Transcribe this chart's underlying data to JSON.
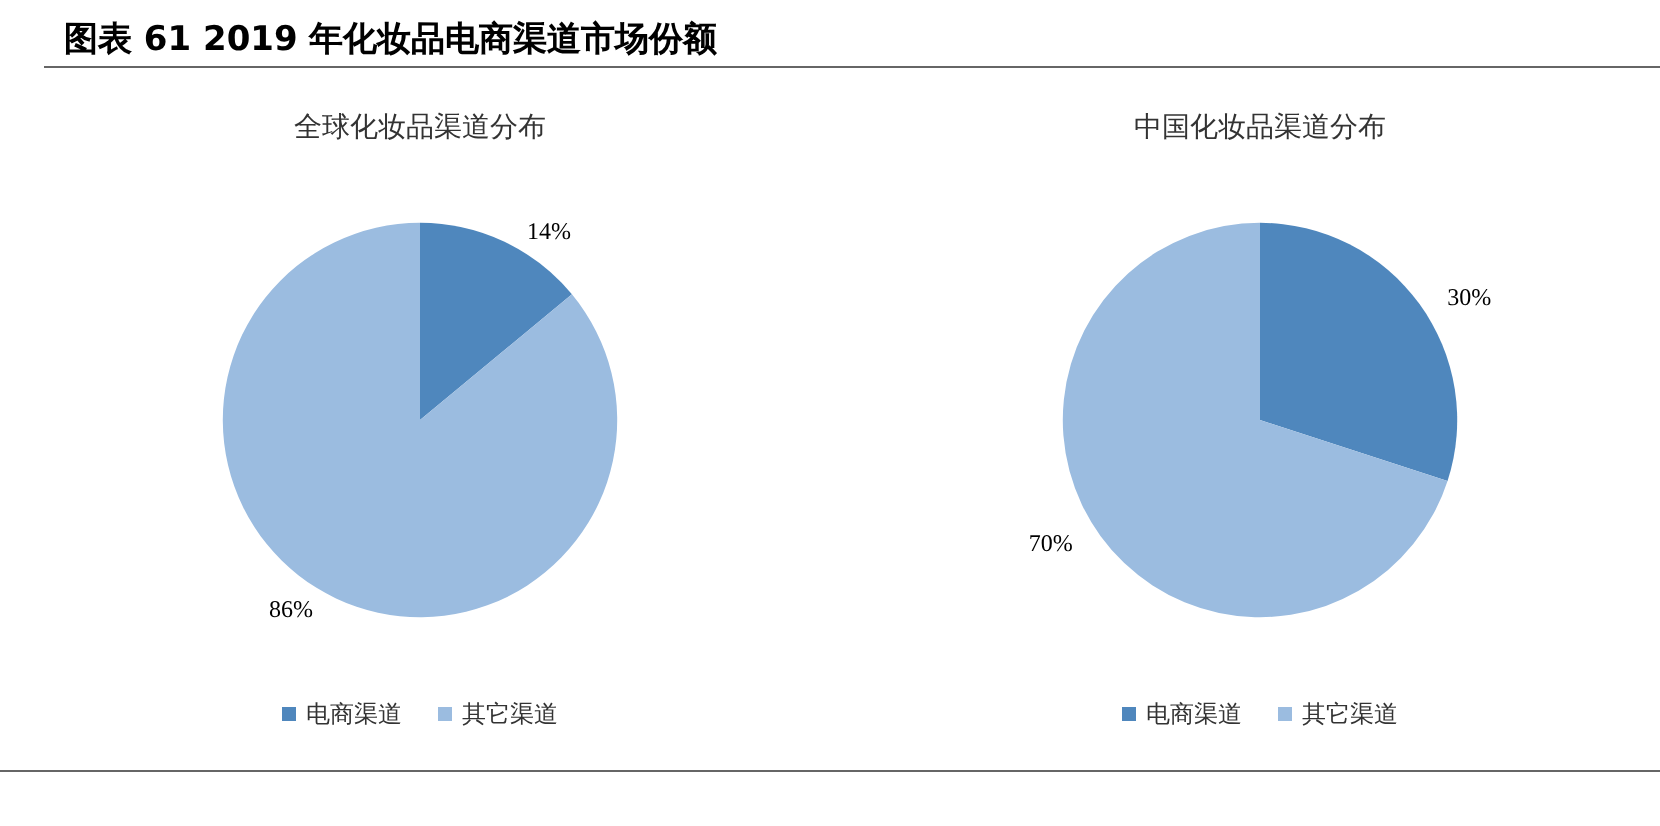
{
  "chart_data": [
    {
      "type": "pie",
      "title": "全球化妆品渠道分布",
      "annotations": [
        "图表 61 2019 年化妆品电商渠道市场份额"
      ],
      "categories": [
        "电商渠道",
        "其它渠道"
      ],
      "values": [
        14,
        86
      ],
      "colors": [
        "#4f87bd",
        "#9bbce0"
      ],
      "value_labels": [
        "14%",
        "86%"
      ],
      "legend": "bottom"
    },
    {
      "type": "pie",
      "title": "中国化妆品渠道分布",
      "categories": [
        "电商渠道",
        "其它渠道"
      ],
      "values": [
        30,
        70
      ],
      "colors": [
        "#4f87bd",
        "#9bbce0"
      ],
      "value_labels": [
        "30%",
        "70%"
      ],
      "legend": "bottom"
    }
  ]
}
